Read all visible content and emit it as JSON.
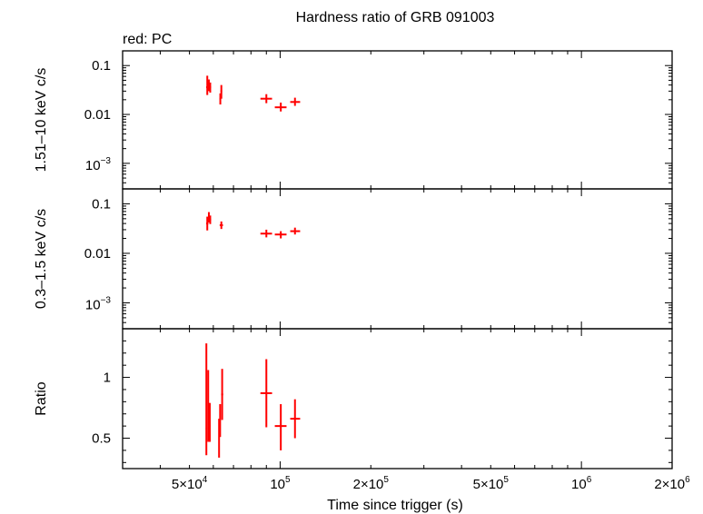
{
  "chart_data": {
    "type": "scatter",
    "title": "Hardness ratio of GRB 091003",
    "subtitle": "red: PC",
    "xlabel": "Time since trigger (s)",
    "xscale": "log",
    "xlim": [
      30000,
      2000000
    ],
    "x_ticks": [
      {
        "value": 50000,
        "mant": "5×10",
        "exp": "4"
      },
      {
        "value": 100000,
        "mant": "10",
        "exp": "5"
      },
      {
        "value": 200000,
        "mant": "2×10",
        "exp": "5"
      },
      {
        "value": 500000,
        "mant": "5×10",
        "exp": "5"
      },
      {
        "value": 1000000,
        "mant": "10",
        "exp": "6"
      },
      {
        "value": 2000000,
        "mant": "2×10",
        "exp": "6"
      }
    ],
    "color": "#ff0000",
    "panels": [
      {
        "id": "hard",
        "ylabel": "1.51–10 keV c/s",
        "yscale": "log",
        "ylim": [
          0.0003,
          0.2
        ],
        "y_ticks": [
          {
            "value": 0.1,
            "text": "0.1"
          },
          {
            "value": 0.01,
            "text": "0.01"
          },
          {
            "value": 0.001,
            "mant": "10",
            "exp": "−3"
          }
        ],
        "points": [
          {
            "x": 57300,
            "y": 0.036,
            "xlo": 56800,
            "xhi": 57800,
            "ylo": 0.025,
            "yhi": 0.062
          },
          {
            "x": 58000,
            "y": 0.04,
            "xlo": 57600,
            "xhi": 58400,
            "ylo": 0.03,
            "yhi": 0.052
          },
          {
            "x": 58600,
            "y": 0.036,
            "xlo": 58200,
            "xhi": 59000,
            "ylo": 0.028,
            "yhi": 0.045
          },
          {
            "x": 63800,
            "y": 0.03,
            "xlo": 63400,
            "xhi": 64200,
            "ylo": 0.021,
            "yhi": 0.04
          },
          {
            "x": 63300,
            "y": 0.021,
            "xlo": 62900,
            "xhi": 63700,
            "ylo": 0.016,
            "yhi": 0.027
          },
          {
            "x": 90000,
            "y": 0.021,
            "xlo": 86000,
            "xhi": 94000,
            "ylo": 0.017,
            "yhi": 0.026
          },
          {
            "x": 100500,
            "y": 0.014,
            "xlo": 96000,
            "xhi": 105000,
            "ylo": 0.0115,
            "yhi": 0.0175
          },
          {
            "x": 112000,
            "y": 0.018,
            "xlo": 108000,
            "xhi": 116500,
            "ylo": 0.015,
            "yhi": 0.022
          }
        ]
      },
      {
        "id": "soft",
        "ylabel": "0.3–1.5 keV c/s",
        "yscale": "log",
        "ylim": [
          0.0003,
          0.2
        ],
        "y_ticks": [
          {
            "value": 0.1,
            "text": "0.1"
          },
          {
            "value": 0.01,
            "text": "0.01"
          },
          {
            "value": 0.001,
            "mant": "10",
            "exp": "−3"
          }
        ],
        "points": [
          {
            "x": 57300,
            "y": 0.04,
            "xlo": 56800,
            "xhi": 57800,
            "ylo": 0.029,
            "yhi": 0.055
          },
          {
            "x": 58000,
            "y": 0.055,
            "xlo": 57600,
            "xhi": 58400,
            "ylo": 0.042,
            "yhi": 0.068
          },
          {
            "x": 58600,
            "y": 0.048,
            "xlo": 58200,
            "xhi": 59000,
            "ylo": 0.039,
            "yhi": 0.058
          },
          {
            "x": 63800,
            "y": 0.037,
            "xlo": 63000,
            "xhi": 64600,
            "ylo": 0.031,
            "yhi": 0.044
          },
          {
            "x": 90000,
            "y": 0.025,
            "xlo": 86000,
            "xhi": 94000,
            "ylo": 0.021,
            "yhi": 0.03
          },
          {
            "x": 100500,
            "y": 0.024,
            "xlo": 96000,
            "xhi": 105000,
            "ylo": 0.02,
            "yhi": 0.028
          },
          {
            "x": 112000,
            "y": 0.028,
            "xlo": 108000,
            "xhi": 116500,
            "ylo": 0.024,
            "yhi": 0.033
          }
        ]
      },
      {
        "id": "ratio",
        "ylabel": "Ratio",
        "yscale": "linear",
        "ylim": [
          0.25,
          1.4
        ],
        "y_ticks": [
          {
            "value": 1,
            "text": "1"
          },
          {
            "value": 0.5,
            "text": "0.5"
          }
        ],
        "points": [
          {
            "x": 56900,
            "y": 0.58,
            "xlo": 56600,
            "xhi": 57200,
            "ylo": 0.36,
            "yhi": 1.28
          },
          {
            "x": 57700,
            "y": 0.58,
            "xlo": 57400,
            "xhi": 58000,
            "ylo": 0.47,
            "yhi": 1.06
          },
          {
            "x": 58400,
            "y": 0.6,
            "xlo": 58100,
            "xhi": 58700,
            "ylo": 0.47,
            "yhi": 0.79
          },
          {
            "x": 62700,
            "y": 0.51,
            "xlo": 62400,
            "xhi": 63000,
            "ylo": 0.34,
            "yhi": 0.66
          },
          {
            "x": 63200,
            "y": 0.66,
            "xlo": 62900,
            "xhi": 63500,
            "ylo": 0.51,
            "yhi": 0.78
          },
          {
            "x": 64200,
            "y": 0.86,
            "xlo": 63700,
            "xhi": 64700,
            "ylo": 0.65,
            "yhi": 1.07
          },
          {
            "x": 90000,
            "y": 0.87,
            "xlo": 86000,
            "xhi": 94000,
            "ylo": 0.59,
            "yhi": 1.15
          },
          {
            "x": 100500,
            "y": 0.6,
            "xlo": 96000,
            "xhi": 105000,
            "ylo": 0.4,
            "yhi": 0.78
          },
          {
            "x": 112000,
            "y": 0.66,
            "xlo": 108000,
            "xhi": 116500,
            "ylo": 0.5,
            "yhi": 0.82
          }
        ]
      }
    ]
  }
}
